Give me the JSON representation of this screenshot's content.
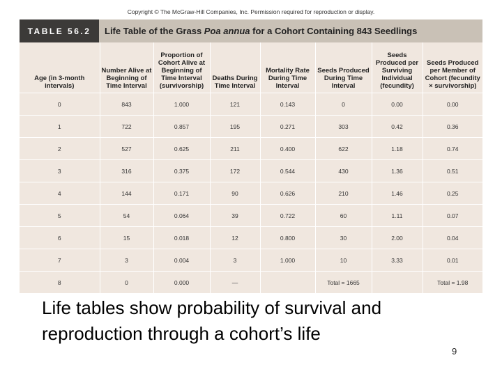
{
  "copyright": "Copyright © The McGraw-Hill Companies, Inc. Permission required for reproduction or display.",
  "table": {
    "tag": "TABLE 56.2",
    "title_prefix": "Life Table of the Grass ",
    "title_species": "Poa annua",
    "title_suffix": " for a Cohort Containing 843 Seedlings",
    "headers": [
      "Age (in 3-month intervals)",
      "Number Alive at Beginning of Time Interval",
      "Proportion of Cohort Alive at Beginning of Time Interval (survivorship)",
      "Deaths During Time Interval",
      "Mortality Rate During Time Interval",
      "Seeds Produced During Time Interval",
      "Seeds Produced per Surviving Individual (fecundity)",
      "Seeds Produced per Member of Cohort (fecundity × survivorship)"
    ],
    "rows": [
      [
        "0",
        "843",
        "1.000",
        "121",
        "0.143",
        "0",
        "0.00",
        "0.00"
      ],
      [
        "1",
        "722",
        "0.857",
        "195",
        "0.271",
        "303",
        "0.42",
        "0.36"
      ],
      [
        "2",
        "527",
        "0.625",
        "211",
        "0.400",
        "622",
        "1.18",
        "0.74"
      ],
      [
        "3",
        "316",
        "0.375",
        "172",
        "0.544",
        "430",
        "1.36",
        "0.51"
      ],
      [
        "4",
        "144",
        "0.171",
        "90",
        "0.626",
        "210",
        "1.46",
        "0.25"
      ],
      [
        "5",
        "54",
        "0.064",
        "39",
        "0.722",
        "60",
        "1.11",
        "0.07"
      ],
      [
        "6",
        "15",
        "0.018",
        "12",
        "0.800",
        "30",
        "2.00",
        "0.04"
      ],
      [
        "7",
        "3",
        "0.004",
        "3",
        "1.000",
        "10",
        "3.33",
        "0.01"
      ],
      [
        "8",
        "0",
        "0.000",
        "—",
        "",
        "Total = 1665",
        "",
        "Total = 1.98"
      ]
    ]
  },
  "caption": "Life tables show probability of survival and reproduction through a cohort’s life",
  "page_number": "9"
}
